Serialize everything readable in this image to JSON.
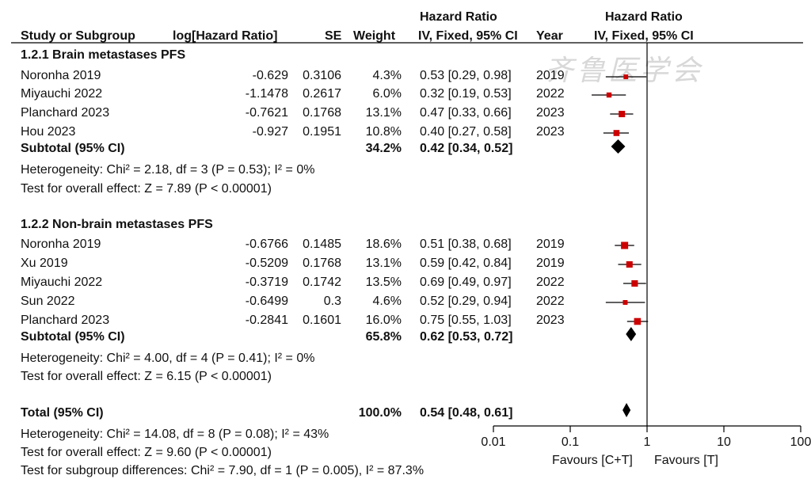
{
  "header": {
    "hr_top_left": "Hazard Ratio",
    "hr_top_right": "Hazard Ratio",
    "study": "Study or Subgroup",
    "loghr": "log[Hazard Ratio]",
    "se": "SE",
    "weight": "Weight",
    "ci": "IV, Fixed, 95% CI",
    "year": "Year",
    "ci_right": "IV, Fixed, 95% CI"
  },
  "watermark": "齐鲁医学会",
  "chart_data": {
    "type": "forest",
    "x_scale": "log",
    "xlim": [
      0.01,
      100
    ],
    "ticks": [
      {
        "value": 0.01,
        "label": "0.01"
      },
      {
        "value": 0.1,
        "label": "0.1"
      },
      {
        "value": 1,
        "label": "1"
      },
      {
        "value": 10,
        "label": "10"
      },
      {
        "value": 100,
        "label": "100"
      }
    ],
    "favours_left": "Favours [C+T]",
    "favours_right": "Favours [T]",
    "groups": [
      {
        "title": "1.2.1 Brain metastases PFS",
        "studies": [
          {
            "name": "Noronha 2019",
            "loghr": "-0.629",
            "se": "0.3106",
            "weight": "4.3%",
            "ci": "0.53 [0.29, 0.98]",
            "year": "2019",
            "hr": 0.53,
            "lo": 0.29,
            "hi": 0.98
          },
          {
            "name": "Miyauchi 2022",
            "loghr": "-1.1478",
            "se": "0.2617",
            "weight": "6.0%",
            "ci": "0.32 [0.19, 0.53]",
            "year": "2022",
            "hr": 0.32,
            "lo": 0.19,
            "hi": 0.53
          },
          {
            "name": "Planchard 2023",
            "loghr": "-0.7621",
            "se": "0.1768",
            "weight": "13.1%",
            "ci": "0.47 [0.33, 0.66]",
            "year": "2023",
            "hr": 0.47,
            "lo": 0.33,
            "hi": 0.66
          },
          {
            "name": "Hou 2023",
            "loghr": "-0.927",
            "se": "0.1951",
            "weight": "10.8%",
            "ci": "0.40 [0.27, 0.58]",
            "year": "2023",
            "hr": 0.4,
            "lo": 0.27,
            "hi": 0.58
          }
        ],
        "subtotal": {
          "label": "Subtotal (95% CI)",
          "weight": "34.2%",
          "ci": "0.42 [0.34, 0.52]",
          "hr": 0.42,
          "lo": 0.34,
          "hi": 0.52
        },
        "heterogeneity": "Heterogeneity: Chi² = 2.18, df = 3 (P = 0.53); I² = 0%",
        "overall": "Test for overall effect: Z = 7.89 (P < 0.00001)"
      },
      {
        "title": "1.2.2 Non-brain metastases PFS",
        "studies": [
          {
            "name": "Noronha 2019",
            "loghr": "-0.6766",
            "se": "0.1485",
            "weight": "18.6%",
            "ci": "0.51 [0.38, 0.68]",
            "year": "2019",
            "hr": 0.51,
            "lo": 0.38,
            "hi": 0.68
          },
          {
            "name": "Xu 2019",
            "loghr": "-0.5209",
            "se": "0.1768",
            "weight": "13.1%",
            "ci": "0.59 [0.42, 0.84]",
            "year": "2019",
            "hr": 0.59,
            "lo": 0.42,
            "hi": 0.84
          },
          {
            "name": "Miyauchi 2022",
            "loghr": "-0.3719",
            "se": "0.1742",
            "weight": "13.5%",
            "ci": "0.69 [0.49, 0.97]",
            "year": "2022",
            "hr": 0.69,
            "lo": 0.49,
            "hi": 0.97
          },
          {
            "name": "Sun 2022",
            "loghr": "-0.6499",
            "se": "0.3",
            "weight": "4.6%",
            "ci": "0.52 [0.29, 0.94]",
            "year": "2022",
            "hr": 0.52,
            "lo": 0.29,
            "hi": 0.94
          },
          {
            "name": "Planchard 2023",
            "loghr": "-0.2841",
            "se": "0.1601",
            "weight": "16.0%",
            "ci": "0.75 [0.55, 1.03]",
            "year": "2023",
            "hr": 0.75,
            "lo": 0.55,
            "hi": 1.03
          }
        ],
        "subtotal": {
          "label": "Subtotal (95% CI)",
          "weight": "65.8%",
          "ci": "0.62 [0.53, 0.72]",
          "hr": 0.62,
          "lo": 0.53,
          "hi": 0.72
        },
        "heterogeneity": "Heterogeneity: Chi² = 4.00, df = 4 (P = 0.41); I² = 0%",
        "overall": "Test for overall effect: Z = 6.15 (P < 0.00001)"
      }
    ],
    "total": {
      "label": "Total (95% CI)",
      "weight": "100.0%",
      "ci": "0.54 [0.48, 0.61]",
      "hr": 0.54,
      "lo": 0.48,
      "hi": 0.61,
      "heterogeneity": "Heterogeneity: Chi² = 14.08, df = 8 (P = 0.08); I² = 43%",
      "overall": "Test for overall effect: Z = 9.60 (P < 0.00001)",
      "subgroup_diff": "Test for subgroup differences: Chi² = 7.90, df = 1 (P = 0.005), I² = 87.3%"
    },
    "colors": {
      "square": "#cc0000",
      "diamond": "#000000",
      "line": "#000000"
    }
  }
}
